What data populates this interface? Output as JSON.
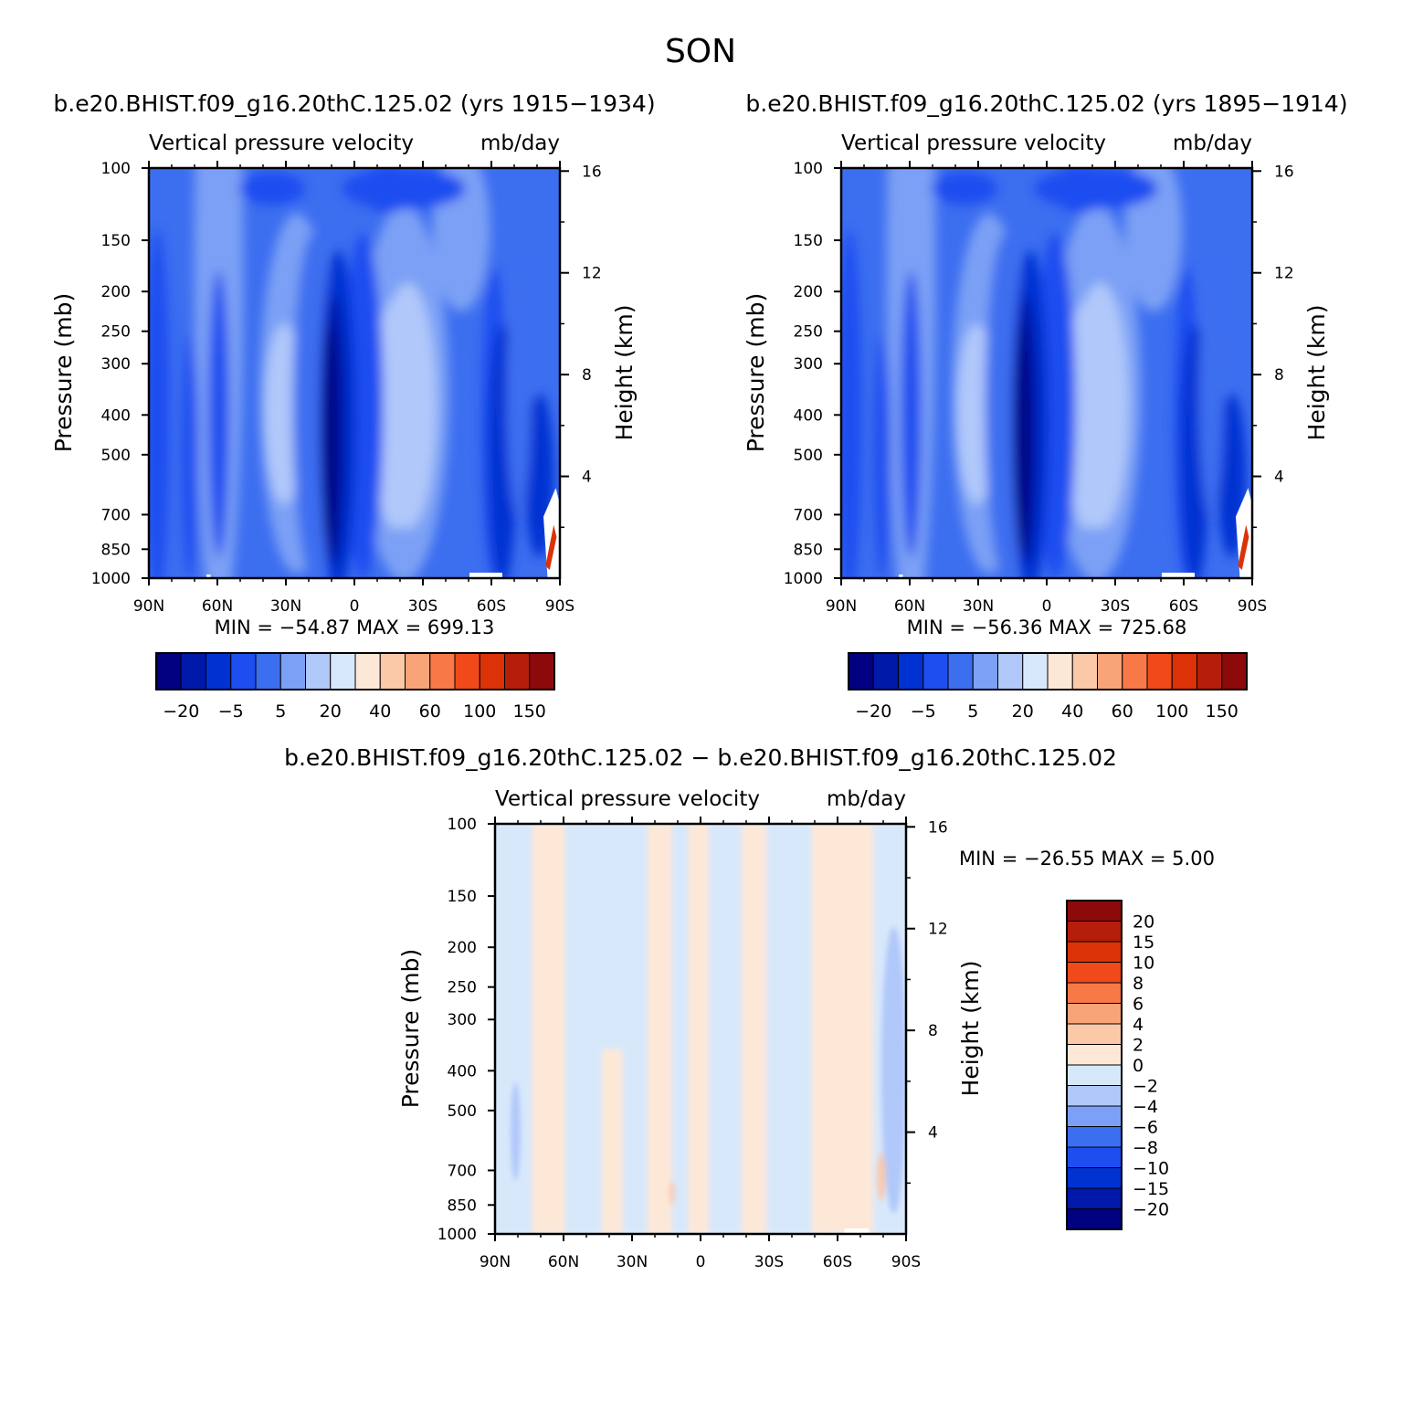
{
  "page_title": "SON",
  "panels": [
    {
      "id": "p1",
      "case_title": "b.e20.BHIST.f09_g16.20thC.125.02 (yrs 1915−1934)",
      "left_string": "Vertical pressure velocity",
      "right_string": "mb/day",
      "min_max": "MIN = −54.87   MAX = 699.13"
    },
    {
      "id": "p2",
      "case_title": "b.e20.BHIST.f09_g16.20thC.125.02 (yrs 1895−1914)",
      "left_string": "Vertical pressure velocity",
      "right_string": "mb/day",
      "min_max": "MIN = −56.36   MAX = 725.68"
    },
    {
      "id": "p3",
      "case_title": "b.e20.BHIST.f09_g16.20thC.125.02 − b.e20.BHIST.f09_g16.20thC.125.02",
      "left_string": "Vertical pressure velocity",
      "right_string": "mb/day",
      "min_max": "MIN = −26.55   MAX =    5.00"
    }
  ],
  "colors": {
    "abs_scale": [
      "#000080",
      "#0019a8",
      "#0032d2",
      "#1e4ef0",
      "#3c6ef0",
      "#7ca0f5",
      "#b0c8fa",
      "#d8e8fb",
      "#fde8d8",
      "#fbc8a8",
      "#f8a478",
      "#f87848",
      "#f04a1a",
      "#dc3208",
      "#b41e0a",
      "#8c0a0a"
    ],
    "diff_scale": [
      "#000080",
      "#0019a8",
      "#0032d2",
      "#1e4ef0",
      "#3c6ef0",
      "#7ca0f5",
      "#b0c8fa",
      "#d8e8fb",
      "#fde8d8",
      "#fbc8a8",
      "#f8a478",
      "#f87848",
      "#f04a1a",
      "#dc3208",
      "#b41e0a",
      "#8c0a0a"
    ]
  },
  "chart_data": [
    {
      "type": "heatmap",
      "title": "b.e20.BHIST.f09_g16.20thC.125.02 (yrs 1915−1934)",
      "ylabel": "Pressure (mb)",
      "ylabel_right": "Height (km)",
      "x_ticks": [
        "90N",
        "60N",
        "30N",
        "0",
        "30S",
        "60S",
        "90S"
      ],
      "y_ticks": [
        "100",
        "150",
        "200",
        "250",
        "300",
        "400",
        "500",
        "700",
        "850",
        "1000"
      ],
      "y_ticks_right": [
        "16",
        "12",
        "8",
        "4"
      ],
      "y_scale": "log",
      "colorbar_labels": [
        "−20",
        "−5",
        "5",
        "20",
        "40",
        "60",
        "100",
        "150"
      ]
    },
    {
      "type": "heatmap",
      "title": "b.e20.BHIST.f09_g16.20thC.125.02 (yrs 1895−1914)",
      "ylabel": "Pressure (mb)",
      "ylabel_right": "Height (km)",
      "x_ticks": [
        "90N",
        "60N",
        "30N",
        "0",
        "30S",
        "60S",
        "90S"
      ],
      "y_ticks": [
        "100",
        "150",
        "200",
        "250",
        "300",
        "400",
        "500",
        "700",
        "850",
        "1000"
      ],
      "y_ticks_right": [
        "16",
        "12",
        "8",
        "4"
      ],
      "y_scale": "log",
      "colorbar_labels": [
        "−20",
        "−5",
        "5",
        "20",
        "40",
        "60",
        "100",
        "150"
      ]
    },
    {
      "type": "heatmap",
      "title": "b.e20.BHIST.f09_g16.20thC.125.02 − b.e20.BHIST.f09_g16.20thC.125.02",
      "ylabel": "Pressure (mb)",
      "ylabel_right": "Height (km)",
      "x_ticks": [
        "90N",
        "60N",
        "30N",
        "0",
        "30S",
        "60S",
        "90S"
      ],
      "y_ticks": [
        "100",
        "150",
        "200",
        "250",
        "300",
        "400",
        "500",
        "700",
        "850",
        "1000"
      ],
      "y_ticks_right": [
        "16",
        "12",
        "8",
        "4"
      ],
      "y_scale": "log",
      "colorbar_labels": [
        "20",
        "15",
        "10",
        "8",
        "6",
        "4",
        "2",
        "0",
        "−2",
        "−4",
        "−6",
        "−8",
        "−10",
        "−15",
        "−20"
      ]
    }
  ]
}
